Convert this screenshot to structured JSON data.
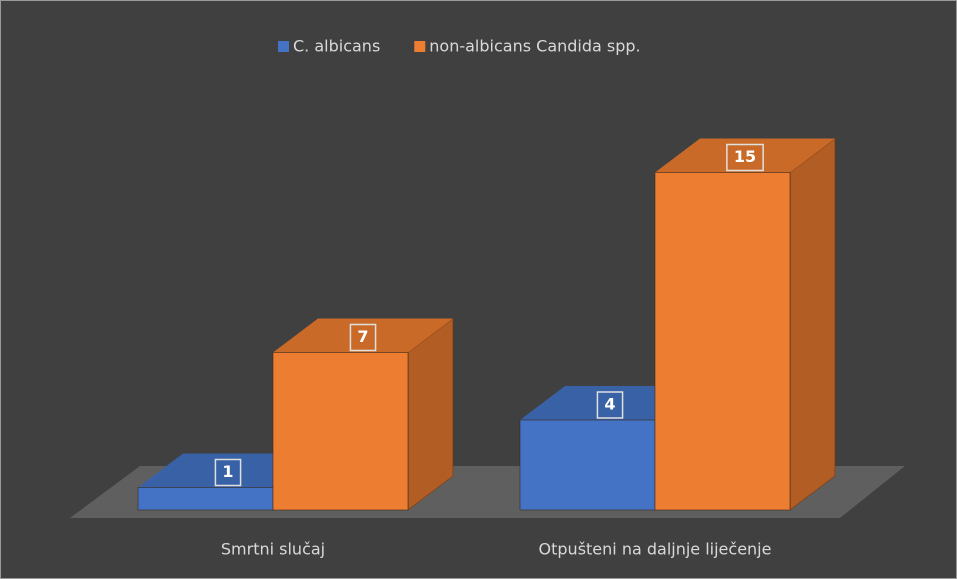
{
  "chart_data": {
    "type": "bar3d",
    "categories": [
      "Smrtni slučaj",
      "Otpušteni na daljnje liječenje"
    ],
    "series": [
      {
        "name": "C. albicans",
        "color": "#4472c4",
        "values": [
          1,
          4
        ]
      },
      {
        "name": "non-albicans Candida spp.",
        "color": "#ed7d31",
        "values": [
          7,
          15
        ]
      }
    ],
    "legend": "top"
  }
}
